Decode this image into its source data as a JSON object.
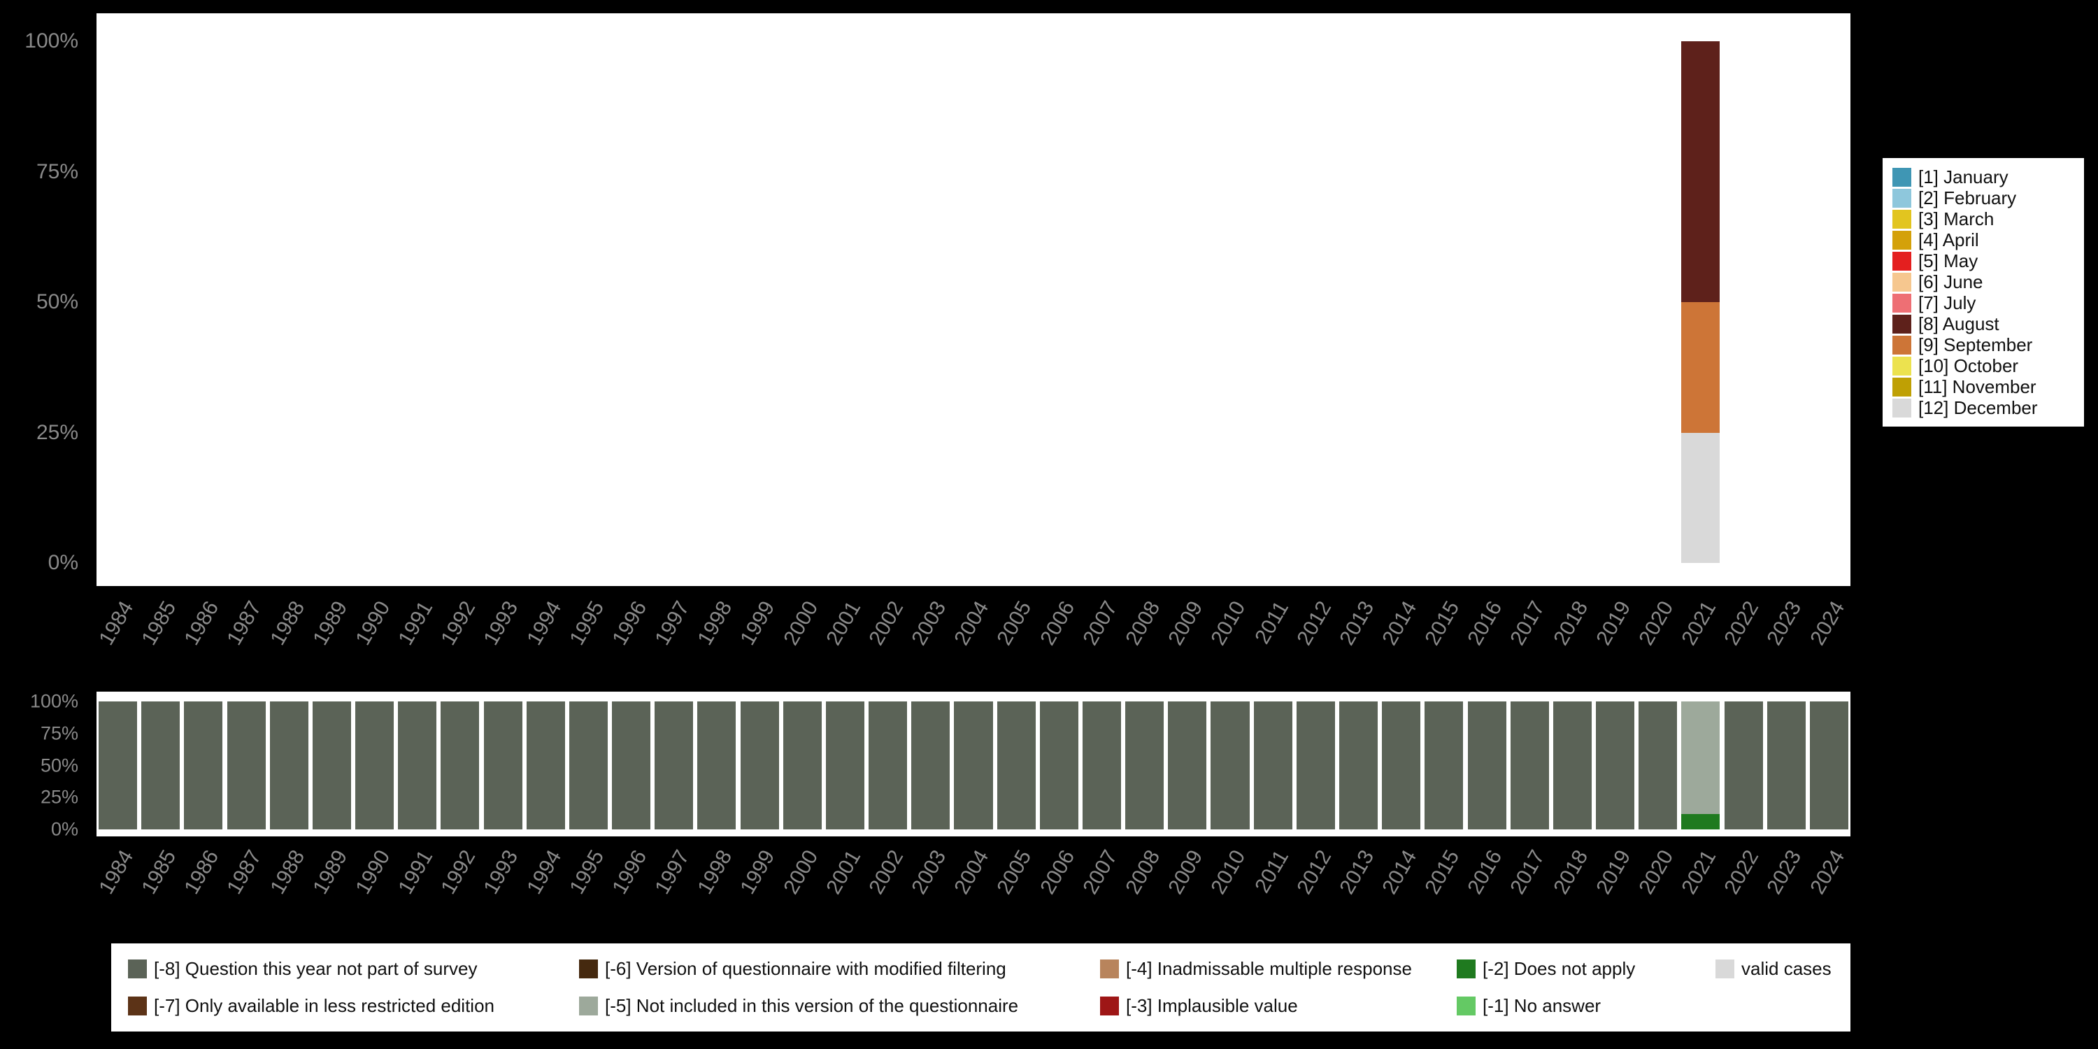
{
  "colors": {
    "background": "#000000",
    "panel": "#ffffff",
    "axis_text": "#8a8a8a"
  },
  "chart_data": [
    {
      "id": "months-by-year",
      "type": "bar",
      "stacked": true,
      "ylim": [
        0,
        100
      ],
      "grid": false,
      "y_ticks": [
        "0%",
        "25%",
        "50%",
        "75%",
        "100%"
      ],
      "categories": [
        "1984",
        "1985",
        "1986",
        "1987",
        "1988",
        "1989",
        "1990",
        "1991",
        "1992",
        "1993",
        "1994",
        "1995",
        "1996",
        "1997",
        "1998",
        "1999",
        "2000",
        "2001",
        "2002",
        "2003",
        "2004",
        "2005",
        "2006",
        "2007",
        "2008",
        "2009",
        "2010",
        "2011",
        "2012",
        "2013",
        "2014",
        "2015",
        "2016",
        "2017",
        "2018",
        "2019",
        "2020",
        "2021",
        "2022",
        "2023",
        "2024"
      ],
      "default_stack": [],
      "stacks": {
        "2021": [
          {
            "key": "12",
            "pct": 25
          },
          {
            "key": "9",
            "pct": 25
          },
          {
            "key": "8",
            "pct": 50
          }
        ]
      },
      "legend": {
        "position": "right",
        "items": [
          {
            "key": "1",
            "label": "[1] January",
            "color": "#3f96b4"
          },
          {
            "key": "2",
            "label": "[2] February",
            "color": "#8ec7dc"
          },
          {
            "key": "3",
            "label": "[3] March",
            "color": "#e2c51f"
          },
          {
            "key": "4",
            "label": "[4] April",
            "color": "#d4a10a"
          },
          {
            "key": "5",
            "label": "[5] May",
            "color": "#e41f1f"
          },
          {
            "key": "6",
            "label": "[6] June",
            "color": "#f6c78f"
          },
          {
            "key": "7",
            "label": "[7] July",
            "color": "#ee6f74"
          },
          {
            "key": "8",
            "label": "[8] August",
            "color": "#5e211b"
          },
          {
            "key": "9",
            "label": "[9] September",
            "color": "#cd7537"
          },
          {
            "key": "10",
            "label": "[10] October",
            "color": "#ece24f"
          },
          {
            "key": "11",
            "label": "[11] November",
            "color": "#bfa004"
          },
          {
            "key": "12",
            "label": "[12] December",
            "color": "#d9d9d9"
          }
        ]
      }
    },
    {
      "id": "missing-values-by-year",
      "type": "bar",
      "stacked": true,
      "ylim": [
        0,
        100
      ],
      "grid": false,
      "y_ticks": [
        "0%",
        "25%",
        "50%",
        "75%",
        "100%"
      ],
      "categories": [
        "1984",
        "1985",
        "1986",
        "1987",
        "1988",
        "1989",
        "1990",
        "1991",
        "1992",
        "1993",
        "1994",
        "1995",
        "1996",
        "1997",
        "1998",
        "1999",
        "2000",
        "2001",
        "2002",
        "2003",
        "2004",
        "2005",
        "2006",
        "2007",
        "2008",
        "2009",
        "2010",
        "2011",
        "2012",
        "2013",
        "2014",
        "2015",
        "2016",
        "2017",
        "2018",
        "2019",
        "2020",
        "2021",
        "2022",
        "2023",
        "2024"
      ],
      "default_stack": [
        {
          "key": "-8",
          "pct": 100
        }
      ],
      "stacks": {
        "2021": [
          {
            "key": "-2",
            "pct": 12
          },
          {
            "key": "-5",
            "pct": 88
          }
        ]
      },
      "legend": {
        "position": "bottom",
        "items": [
          {
            "key": "-8",
            "label": "[-8] Question this year not part of survey",
            "color": "#5b6357"
          },
          {
            "key": "-6",
            "label": "[-6] Version of questionnaire with modified filtering",
            "color": "#45290f"
          },
          {
            "key": "-4",
            "label": "[-4] Inadmissable multiple response",
            "color": "#b8845c"
          },
          {
            "key": "-2",
            "label": "[-2] Does not apply",
            "color": "#1f7a1f"
          },
          {
            "key": "valid",
            "label": "valid cases",
            "color": "#d9d9d9"
          },
          {
            "key": "-7",
            "label": "[-7] Only available in less restricted edition",
            "color": "#5c3317"
          },
          {
            "key": "-5",
            "label": "[-5] Not included in this version of the questionnaire",
            "color": "#9da99b"
          },
          {
            "key": "-3",
            "label": "[-3] Implausible value",
            "color": "#9e1616"
          },
          {
            "key": "-1",
            "label": "[-1] No answer",
            "color": "#64c964"
          }
        ]
      }
    }
  ]
}
